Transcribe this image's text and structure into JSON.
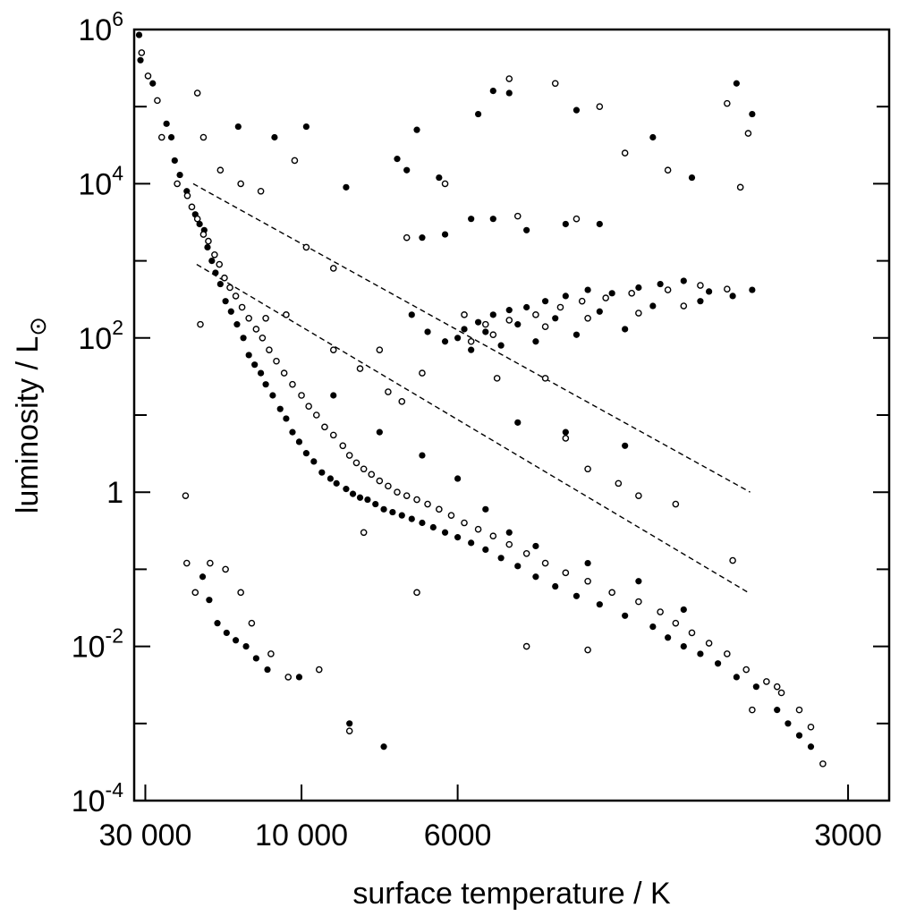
{
  "chart_data": {
    "type": "scatter",
    "xlabel": "surface temperature / K",
    "ylabel": "luminosity / L",
    "ylabel_symbol": "⊙",
    "x_scale": "reciprocal",
    "y_scale": "log",
    "xlim": [
      35000,
      2850
    ],
    "ylim": [
      0.0001,
      1000000
    ],
    "x_ticks": [
      {
        "value": 30000,
        "label": "30 000"
      },
      {
        "value": 10000,
        "label": "10 000"
      },
      {
        "value": 6000,
        "label": "6000"
      },
      {
        "value": 3000,
        "label": "3000"
      }
    ],
    "y_ticks": [
      {
        "value": 0.0001,
        "base": "10",
        "exp": "-4"
      },
      {
        "value": 0.01,
        "base": "10",
        "exp": "-2"
      },
      {
        "value": 1,
        "base": "1",
        "exp": ""
      },
      {
        "value": 100,
        "base": "10",
        "exp": "2"
      },
      {
        "value": 10000,
        "base": "10",
        "exp": "4"
      },
      {
        "value": 1000000,
        "base": "10",
        "exp": "6"
      }
    ],
    "guide_lines": [
      {
        "style": "dashed",
        "points": [
          [
            18600,
            10000
          ],
          [
            3430,
            1
          ]
        ]
      },
      {
        "style": "dashed",
        "points": [
          [
            18100,
            900
          ],
          [
            3440,
            0.05
          ]
        ]
      }
    ],
    "series": [
      {
        "marker": "filled",
        "points": [
          [
            32600,
            850000
          ],
          [
            32000,
            400000
          ],
          [
            27400,
            200000
          ],
          [
            23600,
            60000
          ],
          [
            22500,
            40000
          ],
          [
            21800,
            20000
          ],
          [
            20800,
            13000
          ],
          [
            19600,
            8000
          ],
          [
            18300,
            4000
          ],
          [
            17700,
            3000
          ],
          [
            17100,
            2500
          ],
          [
            16700,
            1500
          ],
          [
            16200,
            1000
          ],
          [
            15800,
            700
          ],
          [
            15300,
            500
          ],
          [
            14800,
            300
          ],
          [
            14300,
            220
          ],
          [
            13800,
            150
          ],
          [
            13300,
            100
          ],
          [
            12900,
            60
          ],
          [
            12500,
            45
          ],
          [
            12100,
            35
          ],
          [
            11800,
            25
          ],
          [
            11400,
            18
          ],
          [
            11000,
            12
          ],
          [
            10700,
            9
          ],
          [
            10400,
            6
          ],
          [
            10100,
            4.5
          ],
          [
            9800,
            3.2
          ],
          [
            9500,
            2.5
          ],
          [
            9200,
            1.8
          ],
          [
            8900,
            1.5
          ],
          [
            8700,
            1.3
          ],
          [
            8400,
            1.1
          ],
          [
            8200,
            0.95
          ],
          [
            8000,
            0.85
          ],
          [
            7800,
            0.8
          ],
          [
            7600,
            0.7
          ],
          [
            7400,
            0.6
          ],
          [
            7200,
            0.55
          ],
          [
            7000,
            0.5
          ],
          [
            6800,
            0.45
          ],
          [
            6600,
            0.4
          ],
          [
            6400,
            0.35
          ],
          [
            6200,
            0.3
          ],
          [
            6000,
            0.26
          ],
          [
            5800,
            0.22
          ],
          [
            5600,
            0.18
          ],
          [
            5400,
            0.14
          ],
          [
            5200,
            0.11
          ],
          [
            5000,
            0.08
          ],
          [
            4800,
            0.06
          ],
          [
            4600,
            0.045
          ],
          [
            4400,
            0.035
          ],
          [
            4200,
            0.025
          ],
          [
            4000,
            0.018
          ],
          [
            3900,
            0.013
          ],
          [
            3800,
            0.01
          ],
          [
            3700,
            0.008
          ],
          [
            3600,
            0.006
          ],
          [
            3500,
            0.004
          ],
          [
            3400,
            0.003
          ],
          [
            3300,
            0.0015
          ],
          [
            3250,
            0.001
          ],
          [
            3200,
            0.0007
          ],
          [
            3150,
            0.0005
          ],
          [
            17300,
            0.08
          ],
          [
            16500,
            0.04
          ],
          [
            15600,
            0.02
          ],
          [
            14700,
            0.015
          ],
          [
            13900,
            0.012
          ],
          [
            13100,
            0.01
          ],
          [
            12400,
            0.007
          ],
          [
            11700,
            0.005
          ],
          [
            10100,
            0.004
          ],
          [
            8300,
            0.001
          ],
          [
            7400,
            0.0005
          ],
          [
            13700,
            55000
          ],
          [
            11300,
            40000
          ],
          [
            9800,
            55000
          ],
          [
            8400,
            9000
          ],
          [
            7100,
            21000
          ],
          [
            6900,
            15000
          ],
          [
            6700,
            50000
          ],
          [
            6300,
            12000
          ],
          [
            5700,
            80000
          ],
          [
            5500,
            160000
          ],
          [
            5300,
            150000
          ],
          [
            4600,
            90000
          ],
          [
            4000,
            40000
          ],
          [
            3500,
            200000
          ],
          [
            3420,
            80000
          ],
          [
            3750,
            12000
          ],
          [
            6600,
            2000
          ],
          [
            6200,
            2200
          ],
          [
            5800,
            3500
          ],
          [
            5500,
            3500
          ],
          [
            5100,
            2500
          ],
          [
            4700,
            3000
          ],
          [
            4400,
            3000
          ],
          [
            6800,
            200
          ],
          [
            6500,
            120
          ],
          [
            6200,
            90
          ],
          [
            5900,
            130
          ],
          [
            5700,
            160
          ],
          [
            5500,
            200
          ],
          [
            5300,
            230
          ],
          [
            5100,
            250
          ],
          [
            4900,
            300
          ],
          [
            4700,
            350
          ],
          [
            4500,
            420
          ],
          [
            4300,
            380
          ],
          [
            4100,
            450
          ],
          [
            3950,
            500
          ],
          [
            3800,
            550
          ],
          [
            3650,
            400
          ],
          [
            3520,
            350
          ],
          [
            3420,
            420
          ],
          [
            6000,
            100
          ],
          [
            5600,
            120
          ],
          [
            5200,
            150
          ],
          [
            4800,
            180
          ],
          [
            4400,
            220
          ],
          [
            4000,
            260
          ],
          [
            3700,
            300
          ],
          [
            5800,
            70
          ],
          [
            5400,
            80
          ],
          [
            5000,
            90
          ],
          [
            4600,
            110
          ],
          [
            4200,
            130
          ],
          [
            5200,
            8
          ],
          [
            4700,
            6
          ],
          [
            4200,
            4
          ],
          [
            8800,
            18
          ],
          [
            7500,
            6
          ],
          [
            6600,
            3
          ],
          [
            6000,
            1.5
          ],
          [
            5600,
            0.6
          ],
          [
            5300,
            0.3
          ],
          [
            5000,
            0.2
          ],
          [
            4500,
            0.12
          ],
          [
            4100,
            0.07
          ],
          [
            3800,
            0.03
          ]
        ]
      },
      {
        "marker": "open",
        "points": [
          [
            31500,
            500000
          ],
          [
            29000,
            250000
          ],
          [
            26000,
            120000
          ],
          [
            24800,
            40000
          ],
          [
            21300,
            10000
          ],
          [
            19500,
            7000
          ],
          [
            18800,
            5000
          ],
          [
            18000,
            3500
          ],
          [
            17200,
            2200
          ],
          [
            16600,
            1800
          ],
          [
            15900,
            1200
          ],
          [
            15400,
            900
          ],
          [
            14900,
            600
          ],
          [
            14400,
            450
          ],
          [
            13900,
            350
          ],
          [
            13400,
            250
          ],
          [
            12900,
            180
          ],
          [
            12400,
            130
          ],
          [
            12000,
            100
          ],
          [
            11600,
            70
          ],
          [
            11200,
            50
          ],
          [
            10800,
            35
          ],
          [
            10400,
            25
          ],
          [
            10000,
            18
          ],
          [
            9700,
            13
          ],
          [
            9400,
            10
          ],
          [
            9100,
            7
          ],
          [
            8800,
            5.5
          ],
          [
            8500,
            4
          ],
          [
            8300,
            3
          ],
          [
            8100,
            2.4
          ],
          [
            7900,
            2
          ],
          [
            7700,
            1.7
          ],
          [
            7500,
            1.4
          ],
          [
            7300,
            1.2
          ],
          [
            7100,
            1
          ],
          [
            6900,
            0.9
          ],
          [
            6700,
            0.8
          ],
          [
            6500,
            0.7
          ],
          [
            6300,
            0.6
          ],
          [
            6100,
            0.5
          ],
          [
            5900,
            0.4
          ],
          [
            5700,
            0.33
          ],
          [
            5500,
            0.27
          ],
          [
            5300,
            0.21
          ],
          [
            5100,
            0.16
          ],
          [
            4900,
            0.12
          ],
          [
            4700,
            0.09
          ],
          [
            4500,
            0.07
          ],
          [
            4300,
            0.05
          ],
          [
            4100,
            0.038
          ],
          [
            3950,
            0.028
          ],
          [
            3850,
            0.02
          ],
          [
            3750,
            0.015
          ],
          [
            3650,
            0.011
          ],
          [
            3550,
            0.008
          ],
          [
            3450,
            0.005
          ],
          [
            3350,
            0.0035
          ],
          [
            3280,
            0.0025
          ],
          [
            3200,
            0.0015
          ],
          [
            3150,
            0.0009
          ],
          [
            3100,
            0.0003
          ],
          [
            17600,
            150
          ],
          [
            18300,
            0.05
          ],
          [
            19800,
            0.9
          ],
          [
            19600,
            0.12
          ],
          [
            16400,
            0.12
          ],
          [
            14800,
            0.1
          ],
          [
            13500,
            0.05
          ],
          [
            12700,
            0.02
          ],
          [
            11500,
            0.008
          ],
          [
            10600,
            0.004
          ],
          [
            9300,
            0.005
          ],
          [
            8300,
            0.0008
          ],
          [
            18000,
            150000
          ],
          [
            17200,
            40000
          ],
          [
            15300,
            15000
          ],
          [
            13500,
            10000
          ],
          [
            12100,
            8000
          ],
          [
            10300,
            20000
          ],
          [
            9800,
            1500
          ],
          [
            8800,
            800
          ],
          [
            6900,
            2000
          ],
          [
            6200,
            10000
          ],
          [
            5300,
            230000
          ],
          [
            4800,
            200000
          ],
          [
            4400,
            100000
          ],
          [
            4200,
            25000
          ],
          [
            3900,
            15000
          ],
          [
            3550,
            110000
          ],
          [
            3440,
            45000
          ],
          [
            3480,
            9000
          ],
          [
            5200,
            3800
          ],
          [
            4600,
            3500
          ],
          [
            5800,
            90
          ],
          [
            5600,
            150
          ],
          [
            5300,
            170
          ],
          [
            5000,
            200
          ],
          [
            4750,
            250
          ],
          [
            4550,
            300
          ],
          [
            4350,
            330
          ],
          [
            4150,
            380
          ],
          [
            3900,
            420
          ],
          [
            3700,
            480
          ],
          [
            3550,
            430
          ],
          [
            5900,
            200
          ],
          [
            5500,
            110
          ],
          [
            4900,
            140
          ],
          [
            4500,
            180
          ],
          [
            4100,
            210
          ],
          [
            3800,
            260
          ],
          [
            5450,
            30
          ],
          [
            4900,
            30
          ],
          [
            4700,
            5
          ],
          [
            4500,
            2
          ],
          [
            4250,
            1.3
          ],
          [
            4100,
            0.9
          ],
          [
            3850,
            0.7
          ],
          [
            3520,
            0.13
          ],
          [
            3300,
            0.003
          ],
          [
            7900,
            0.3
          ],
          [
            6700,
            0.05
          ],
          [
            5100,
            0.01
          ],
          [
            4500,
            0.009
          ],
          [
            3420,
            0.0015
          ],
          [
            11800,
            180
          ],
          [
            10700,
            200
          ],
          [
            8800,
            70
          ],
          [
            8000,
            40
          ],
          [
            7500,
            70
          ],
          [
            7300,
            20
          ],
          [
            7000,
            15
          ],
          [
            6600,
            35
          ]
        ]
      }
    ]
  }
}
